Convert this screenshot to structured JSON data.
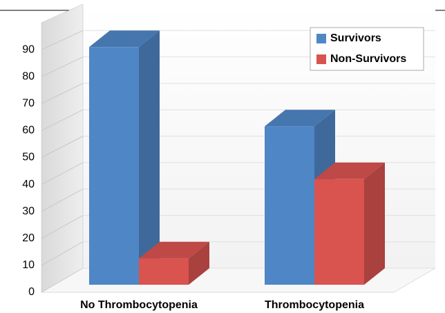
{
  "chart_data": {
    "type": "bar3d",
    "categories": [
      "No Thrombocytopenia",
      "Thrombocytopenia"
    ],
    "series": [
      {
        "name": "Survivors",
        "color": "#4f86c6",
        "values": [
          90,
          60
        ]
      },
      {
        "name": "Non-Survivors",
        "color": "#d9534f",
        "values": [
          10,
          40
        ]
      }
    ],
    "ylim": [
      0,
      100
    ],
    "yticks": [
      0,
      10,
      20,
      30,
      40,
      50,
      60,
      70,
      80,
      90
    ],
    "grid": true,
    "legend": "upper right"
  }
}
